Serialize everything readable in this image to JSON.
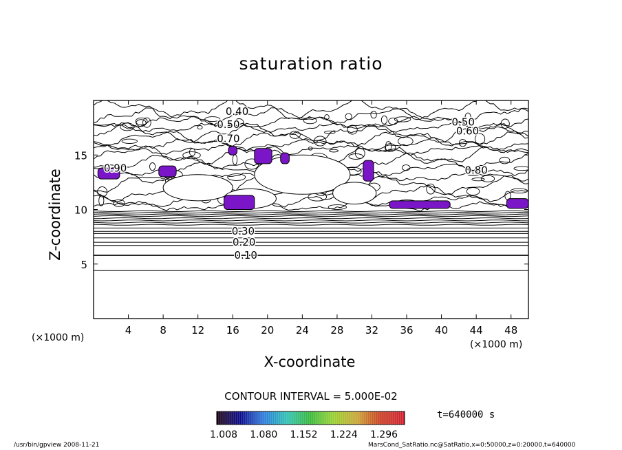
{
  "chart_data": {
    "type": "contour",
    "title": "saturation ratio",
    "xlabel": "X-coordinate",
    "ylabel": "Z-coordinate",
    "x_unit": "(×1000 m)",
    "y_unit": "(×1000 m)",
    "xlim": [
      0,
      50
    ],
    "ylim": [
      0,
      20
    ],
    "xticks": [
      4,
      8,
      12,
      16,
      20,
      24,
      28,
      32,
      36,
      40,
      44,
      48
    ],
    "yticks": [
      5,
      10,
      15
    ],
    "contour_labels": [
      {
        "text": "0.10",
        "x": 17.5,
        "z": 5.8
      },
      {
        "text": "0.20",
        "x": 17.3,
        "z": 7.0
      },
      {
        "text": "0.30",
        "x": 17.2,
        "z": 8.0
      },
      {
        "text": "0.40",
        "x": 16.5,
        "z": 19.0
      },
      {
        "text": "0.50",
        "x": 15.5,
        "z": 17.8
      },
      {
        "text": "0.50",
        "x": 42.5,
        "z": 18.0
      },
      {
        "text": "0.60",
        "x": 43.0,
        "z": 17.2
      },
      {
        "text": "0.70",
        "x": 15.5,
        "z": 16.5
      },
      {
        "text": "0.80",
        "x": 44.0,
        "z": 13.6
      },
      {
        "text": "0.90",
        "x": 2.5,
        "z": 13.8
      }
    ],
    "supersaturated_regions": [
      {
        "x": [
          0.5,
          3.0
        ],
        "z": [
          12.8,
          13.8
        ]
      },
      {
        "x": [
          7.5,
          9.5
        ],
        "z": [
          13.0,
          14.0
        ]
      },
      {
        "x": [
          15.0,
          18.5
        ],
        "z": [
          10.0,
          11.3
        ]
      },
      {
        "x": [
          15.5,
          16.5
        ],
        "z": [
          15.0,
          15.8
        ]
      },
      {
        "x": [
          18.5,
          20.5
        ],
        "z": [
          14.2,
          15.6
        ]
      },
      {
        "x": [
          21.5,
          22.5
        ],
        "z": [
          14.2,
          15.2
        ]
      },
      {
        "x": [
          31.0,
          32.2
        ],
        "z": [
          12.6,
          14.5
        ]
      },
      {
        "x": [
          34.0,
          41.0
        ],
        "z": [
          10.1,
          10.8
        ]
      },
      {
        "x": [
          47.5,
          50.0
        ],
        "z": [
          10.1,
          11.0
        ]
      }
    ],
    "colorbar": {
      "ticks": [
        "1.008",
        "1.080",
        "1.152",
        "1.224",
        "1.296"
      ],
      "colors": [
        "#1a0010",
        "#0a0a8a",
        "#2a7adc",
        "#2ac0b0",
        "#38b838",
        "#9ad030",
        "#c8a030",
        "#c83a20",
        "#d02030"
      ]
    },
    "contour_interval": "CONTOUR INTERVAL = 5.000E-02",
    "time": "t=640000 s"
  },
  "footer": {
    "left": "/usr/bin/gpview  2008-11-21",
    "right": "MarsCond_SatRatio.nc@SatRatio,x=0:50000,z=0:20000,t=640000"
  }
}
